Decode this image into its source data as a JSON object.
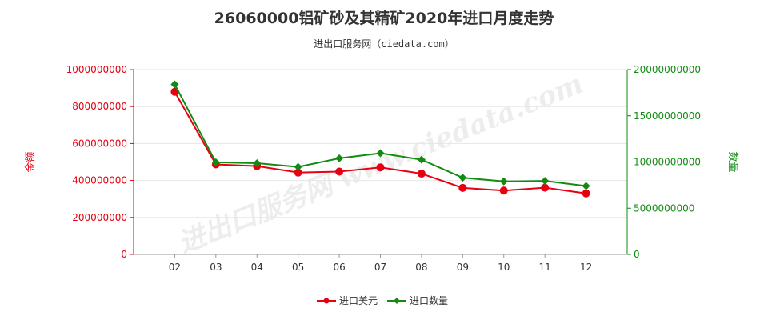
{
  "title": "26060000铝矿砂及其精矿2020年进口月度走势",
  "subtitle": "进出口服务网（ciedata.com）",
  "watermark": "进出口服务网 www.ciedata.com",
  "colors": {
    "value": "#e60012",
    "quantity": "#138b13",
    "grid": "#e6e6e6",
    "axis": "#999999"
  },
  "chart_data": {
    "type": "line",
    "categories": [
      "02",
      "03",
      "04",
      "05",
      "06",
      "07",
      "08",
      "09",
      "10",
      "11",
      "12"
    ],
    "left_axis": {
      "label": "金额",
      "ylim": [
        0,
        1000000000
      ],
      "ticks": [
        "0",
        "200000000",
        "400000000",
        "600000000",
        "800000000",
        "1000000000"
      ]
    },
    "right_axis": {
      "label": "数量",
      "ylim": [
        0,
        20000000000
      ],
      "ticks": [
        "0",
        "5000000000",
        "10000000000",
        "15000000000",
        "20000000000"
      ]
    },
    "series": [
      {
        "name": "进口美元",
        "axis": "left",
        "color": "#e60012",
        "marker": "circle",
        "values": [
          880000000,
          487000000,
          478000000,
          443000000,
          448000000,
          471000000,
          437000000,
          360000000,
          345000000,
          361000000,
          330000000
        ]
      },
      {
        "name": "进口数量",
        "axis": "right",
        "color": "#138b13",
        "marker": "diamond",
        "values": [
          18400000000,
          9970000000,
          9870000000,
          9470000000,
          10400000000,
          10950000000,
          10250000000,
          8300000000,
          7900000000,
          7950000000,
          7400000000
        ]
      }
    ],
    "legend": "bottom-center",
    "grid": true
  }
}
